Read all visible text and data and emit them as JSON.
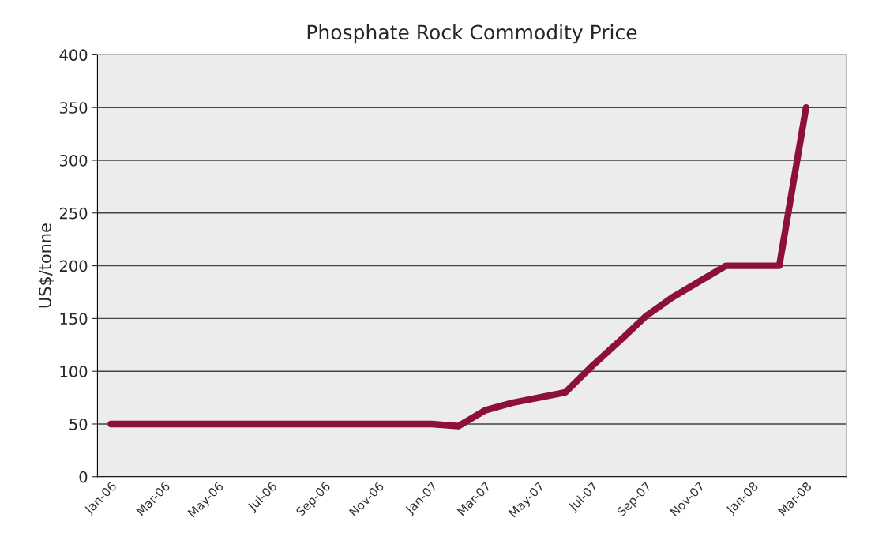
{
  "chart_data": {
    "type": "line",
    "title": "Phosphate Rock Commodity Price",
    "ylabel": "US$/tonne",
    "categories": [
      "Jan-06",
      null,
      "Mar-06",
      null,
      "May-06",
      null,
      "Jul-06",
      null,
      "Sep-06",
      null,
      "Nov-06",
      null,
      "Jan-07",
      null,
      "Mar-07",
      null,
      "May-07",
      null,
      "Jul-07",
      null,
      "Sep-07",
      null,
      "Nov-07",
      null,
      "Jan-08",
      null,
      "Mar-08",
      null
    ],
    "series": [
      {
        "color": "#8c0f3c",
        "values": [
          50,
          50,
          50,
          50,
          50,
          50,
          50,
          50,
          50,
          50,
          50,
          50,
          50,
          48,
          63,
          70,
          75,
          80,
          105,
          128,
          152,
          170,
          185,
          200,
          200,
          200,
          350,
          null
        ]
      }
    ],
    "ylim": [
      0,
      400
    ],
    "yticks": [
      0,
      50,
      100,
      150,
      200,
      250,
      300,
      350,
      400
    ],
    "grid": "y",
    "marker": "none",
    "line_style": "solid"
  }
}
